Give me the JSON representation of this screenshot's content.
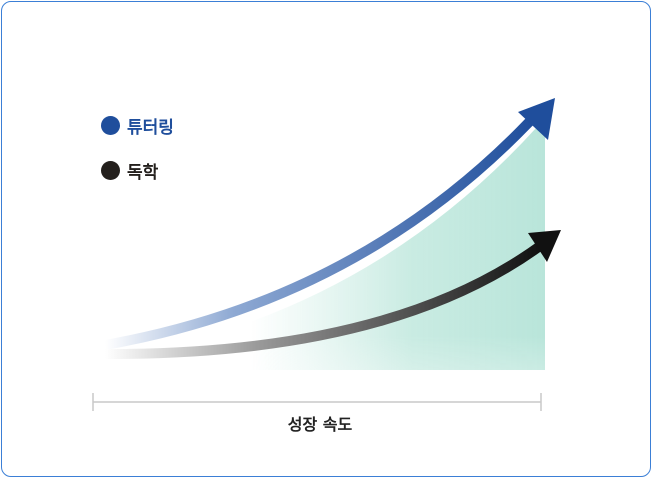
{
  "legend": [
    {
      "label": "튜터링",
      "color": "#1f4e9c"
    },
    {
      "label": "독학",
      "color": "#231f1c"
    }
  ],
  "axis": {
    "label": "성장 속도"
  },
  "colors": {
    "border": "#3b7fd6",
    "fill": "#bfe6dc",
    "axis": "#c8c8c8"
  }
}
